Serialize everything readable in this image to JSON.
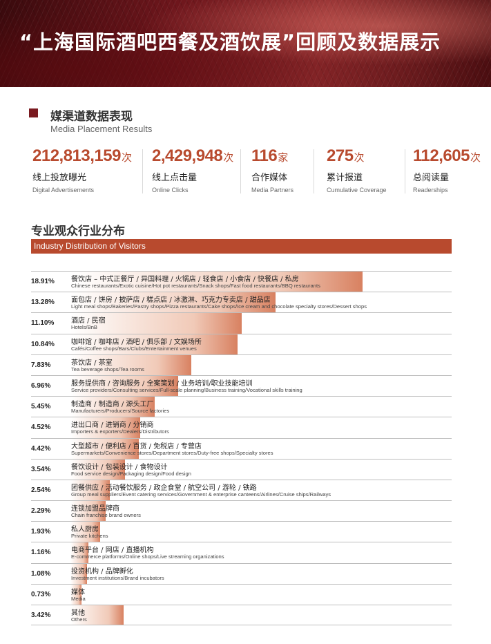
{
  "header": {
    "title": "“上海国际酒吧西餐及酒饮展”回顾及数据展示"
  },
  "media_section": {
    "title": "媒渠道数据表现",
    "subtitle": "Media Placement Results",
    "stats": [
      {
        "value": "212,813,159",
        "unit": "次",
        "label": "线上投放曝光",
        "label_en": "Digital Advertisements"
      },
      {
        "value": "2,429,948",
        "unit": "次",
        "label": "线上点击量",
        "label_en": "Online Clicks"
      },
      {
        "value": "116",
        "unit": "家",
        "label": "合作媒体",
        "label_en": "Media Partners"
      },
      {
        "value": "275",
        "unit": "次",
        "label": "累计报道",
        "label_en": "Cumulative Coverage"
      },
      {
        "value": "112,605",
        "unit": "次",
        "label": "总阅读量",
        "label_en": "Readerships"
      }
    ]
  },
  "industry_section": {
    "title": "专业观众行业分布",
    "banner": "Industry Distribution of Visitors",
    "rows": [
      {
        "pct": "18.91%",
        "value": 18.91,
        "cn": "餐饮店 – 中式正餐厅 / 异国料理 / 火锅店 / 轻食店 / 小食店 / 快餐店 / 私房",
        "en": "Chinese restaurants/Exotic cuisine/Hot pot restaurants/Snack shops/Fast food restaurants/BBQ restaurants"
      },
      {
        "pct": "13.28%",
        "value": 13.28,
        "cn": "面包店 / 饼房 / 披萨店 / 糕点店 / 冰激淋、巧克力专卖店 / 甜品店",
        "en": "Light meal shops/Bakeries/Pastry shops/Pizza restaurants/Cake shops/Ice cream and chocolate specialty stores/Dessert shops"
      },
      {
        "pct": "11.10%",
        "value": 11.1,
        "cn": "酒店 / 民宿",
        "en": "Hotels/BnB"
      },
      {
        "pct": "10.84%",
        "value": 10.84,
        "cn": "咖啡馆 / 咖啡店 / 酒吧 / 俱乐部 / 文娱场所",
        "en": "Cafés/Coffee shops/Bars/Clubs/Entertainment venues"
      },
      {
        "pct": "7.83%",
        "value": 7.83,
        "cn": "茶饮店 / 茶室",
        "en": "Tea beverage shops/Tea rooms"
      },
      {
        "pct": "6.96%",
        "value": 6.96,
        "cn": "服务提供商 / 咨询服务 / 全案策划 / 业务培训/职业技能培训",
        "en": "Service providers/Consulting services/Full-scale planning/Business training/Vocational skills training"
      },
      {
        "pct": "5.45%",
        "value": 5.45,
        "cn": "制造商 / 制造商 / 源头工厂",
        "en": "Manufacturers/Producers/Source factories"
      },
      {
        "pct": "4.52%",
        "value": 4.52,
        "cn": "进出口商 / 进销商 / 分销商",
        "en": "Importers & exporters/Dealers/Distributors"
      },
      {
        "pct": "4.42%",
        "value": 4.42,
        "cn": "大型超市 / 便利店 / 百货 / 免税店 / 专营店",
        "en": "Supermarkets/Convenience stores/Department stores/Duty-free shops/Specialty stores"
      },
      {
        "pct": "3.54%",
        "value": 3.54,
        "cn": "餐饮设计 / 包装设计 / 食物设计",
        "en": "Food service design/Packaging design/Food design"
      },
      {
        "pct": "2.54%",
        "value": 2.54,
        "cn": "团餐供应 / 活动餐饮服务 / 政企食堂 / 航空公司 / 游轮 / 铁路",
        "en": "Group meal suppliers/Event catering services/Government & enterprise canteens/Airlines/Cruise ships/Railways"
      },
      {
        "pct": "2.29%",
        "value": 2.29,
        "cn": "连锁加盟品牌商",
        "en": "Chain franchise brand owners"
      },
      {
        "pct": "1.93%",
        "value": 1.93,
        "cn": "私人厨房",
        "en": "Private kitchens"
      },
      {
        "pct": "1.16%",
        "value": 1.16,
        "cn": "电商平台 / 网店 / 直播机构",
        "en": "E-commerce platforms/Online shops/Live streaming organizations"
      },
      {
        "pct": "1.08%",
        "value": 1.08,
        "cn": "投资机构 / 品牌孵化",
        "en": "Investment institutions/Brand incubators"
      },
      {
        "pct": "0.73%",
        "value": 0.73,
        "cn": "媒体",
        "en": "Media"
      },
      {
        "pct": "3.42%",
        "value": 3.42,
        "cn": "其他",
        "en": "Others"
      }
    ]
  },
  "colors": {
    "accent": "#b84a2e",
    "section_mark": "#7a1a20",
    "header_bg": "#6e161c"
  }
}
